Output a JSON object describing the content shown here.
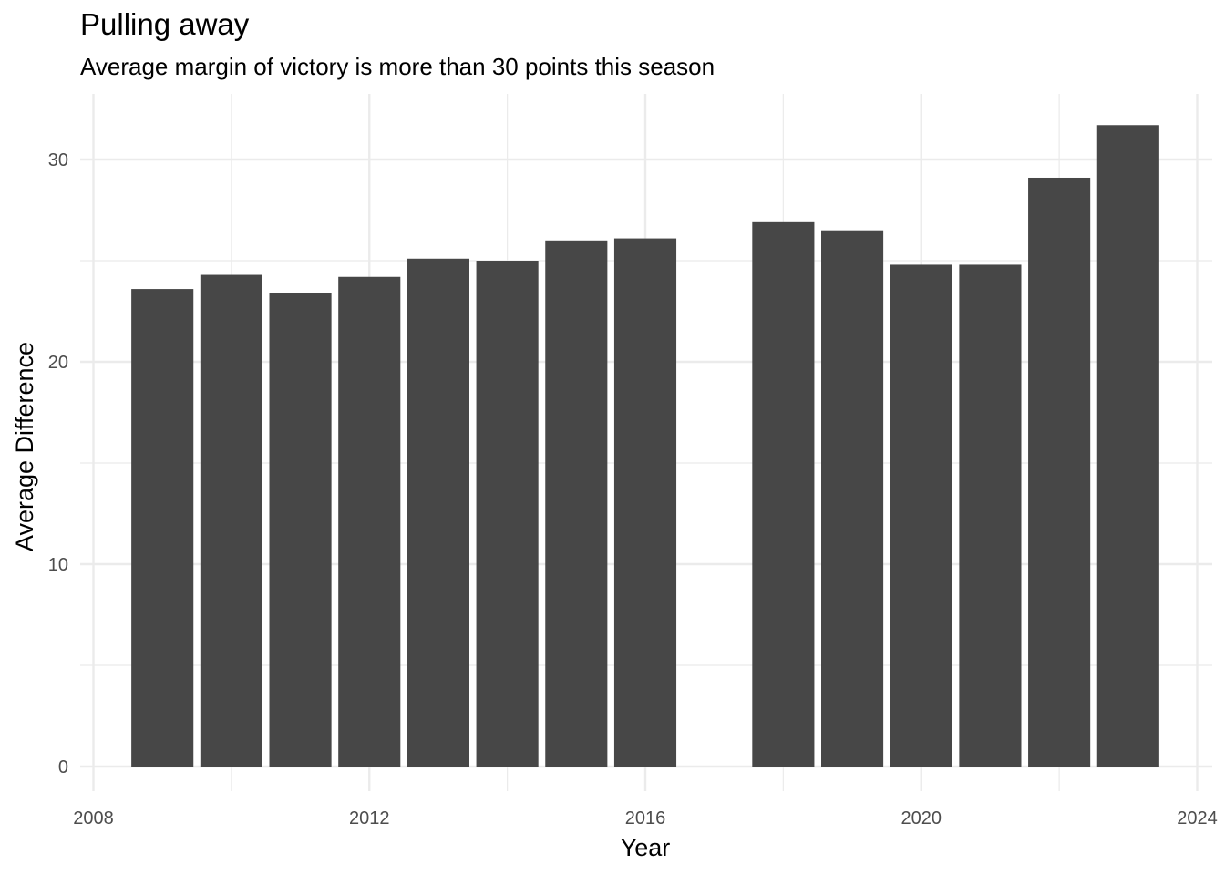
{
  "chart_data": {
    "type": "bar",
    "title": "Pulling away",
    "subtitle": "Average margin of victory is more than 30 points this season",
    "xlabel": "Year",
    "ylabel": "Average Difference",
    "x": [
      2009,
      2010,
      2011,
      2012,
      2013,
      2014,
      2015,
      2016,
      2018,
      2019,
      2020,
      2021,
      2022,
      2023
    ],
    "values": [
      23.6,
      24.3,
      23.4,
      24.2,
      25.1,
      25.0,
      26.0,
      26.1,
      26.9,
      26.5,
      24.8,
      24.8,
      29.1,
      31.7
    ],
    "xlim": [
      2008,
      2024
    ],
    "ylim": [
      0,
      30
    ],
    "x_ticks": [
      2008,
      2012,
      2016,
      2020,
      2024
    ],
    "y_ticks": [
      0,
      10,
      20,
      30
    ],
    "grid": true,
    "bar_color": "#474747",
    "grid_color": "#ebebeb"
  }
}
